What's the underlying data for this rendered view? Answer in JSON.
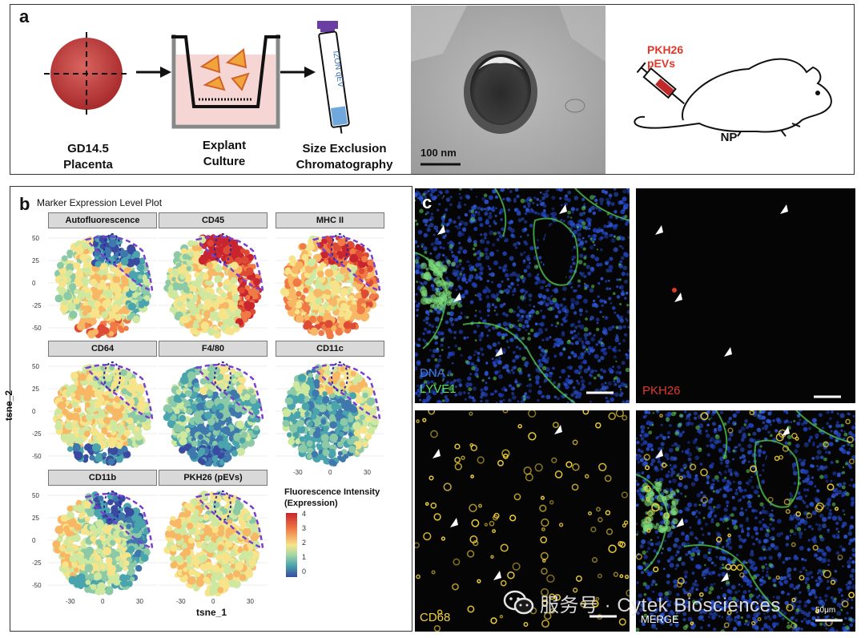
{
  "panel_a": {
    "letter": "a",
    "placenta_label": [
      "GD14.5",
      "Placenta"
    ],
    "explant_label": [
      "Explant",
      "Culture"
    ],
    "sec_label": [
      "Size Exclusion",
      "Chromatography"
    ],
    "column_text": "IZON qEV",
    "scale_bar": "100 nm",
    "injection_label": [
      "PKH26",
      "pEVs"
    ],
    "mouse_label": "NP",
    "accent_red": "#e0392b"
  },
  "panel_b": {
    "letter": "b",
    "title": "Marker Expression Level Plot",
    "ylabel": "tsne_2",
    "xlabel": "tsne_1",
    "y_ticks": [
      "50",
      "25",
      "0",
      "-25",
      "-50"
    ],
    "x_ticks": [
      "-30",
      "0",
      "30"
    ],
    "facets": [
      "Autofluorescence",
      "CD45",
      "MHC II",
      "CD64",
      "F4/80",
      "CD11c",
      "CD11b",
      "PKH26 (pEVs)"
    ],
    "legend_title": [
      "Fluorescence Intensity",
      "(Expression)"
    ],
    "legend_ticks": [
      "4",
      "3",
      "2",
      "1",
      "0"
    ]
  },
  "panel_c": {
    "letter": "c",
    "labels": {
      "dna": "DNA",
      "lyve1": "LYVE1",
      "pkh26": "PKH26",
      "cd68": "CD68",
      "merge": "MERGE"
    },
    "scale_bar": "50μm",
    "watermark": "服务号 · Cytek Biosciences"
  },
  "chart_data": [
    {
      "type": "scatter",
      "title": "Autofluorescence",
      "xlabel": "tsne_1",
      "ylabel": "tsne_2",
      "xlim": [
        -45,
        45
      ],
      "ylim": [
        -55,
        55
      ],
      "scale": [
        0,
        4
      ]
    },
    {
      "type": "scatter",
      "title": "CD45",
      "xlabel": "tsne_1",
      "ylabel": "tsne_2",
      "xlim": [
        -45,
        45
      ],
      "ylim": [
        -55,
        55
      ],
      "scale": [
        0,
        4
      ]
    },
    {
      "type": "scatter",
      "title": "MHC II",
      "xlabel": "tsne_1",
      "ylabel": "tsne_2",
      "xlim": [
        -45,
        45
      ],
      "ylim": [
        -55,
        55
      ],
      "scale": [
        0,
        4
      ]
    },
    {
      "type": "scatter",
      "title": "CD64",
      "xlabel": "tsne_1",
      "ylabel": "tsne_2",
      "xlim": [
        -45,
        45
      ],
      "ylim": [
        -55,
        55
      ],
      "scale": [
        0,
        4
      ]
    },
    {
      "type": "scatter",
      "title": "F4/80",
      "xlabel": "tsne_1",
      "ylabel": "tsne_2",
      "xlim": [
        -45,
        45
      ],
      "ylim": [
        -55,
        55
      ],
      "scale": [
        0,
        4
      ]
    },
    {
      "type": "scatter",
      "title": "CD11c",
      "xlabel": "tsne_1",
      "ylabel": "tsne_2",
      "xlim": [
        -45,
        45
      ],
      "ylim": [
        -55,
        55
      ],
      "scale": [
        0,
        4
      ]
    },
    {
      "type": "scatter",
      "title": "CD11b",
      "xlabel": "tsne_1",
      "ylabel": "tsne_2",
      "xlim": [
        -45,
        45
      ],
      "ylim": [
        -55,
        55
      ],
      "scale": [
        0,
        4
      ]
    },
    {
      "type": "scatter",
      "title": "PKH26 (pEVs)",
      "xlabel": "tsne_1",
      "ylabel": "tsne_2",
      "xlim": [
        -45,
        45
      ],
      "ylim": [
        -55,
        55
      ],
      "scale": [
        0,
        4
      ]
    }
  ]
}
